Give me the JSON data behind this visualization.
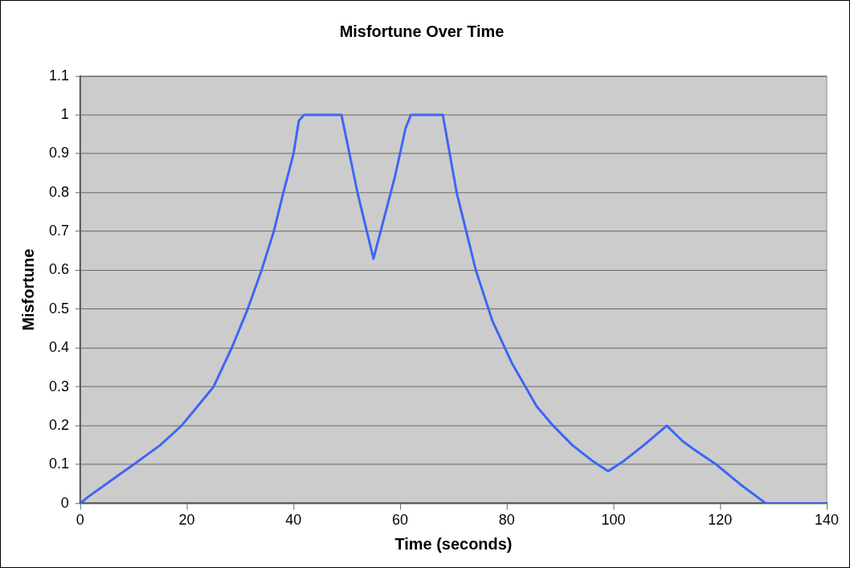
{
  "chart_data": {
    "type": "line",
    "title": "Misfortune Over Time",
    "xlabel": "Time (seconds)",
    "ylabel": "Misfortune",
    "series": [
      {
        "color": "#3d66f5",
        "x": [
          0,
          1.5,
          6.7,
          10,
          15,
          17,
          19,
          22,
          25,
          28.4,
          31.4,
          34,
          36.3,
          38.1,
          40,
          41,
          42,
          49,
          52,
          55,
          59,
          61,
          62,
          68,
          70.6,
          72.4,
          74.2,
          77.3,
          81,
          85.6,
          88.7,
          92.3,
          96,
          99,
          102,
          105.7,
          110,
          113,
          115,
          119.3,
          123.7,
          128.6,
          140
        ],
        "values": [
          0,
          0.017,
          0.068,
          0.1,
          0.15,
          0.175,
          0.2,
          0.25,
          0.3,
          0.4,
          0.5,
          0.6,
          0.7,
          0.8,
          0.9,
          0.985,
          1,
          1,
          0.8,
          0.63,
          0.84,
          0.965,
          1,
          1,
          0.8,
          0.7,
          0.6,
          0.47,
          0.36,
          0.25,
          0.2,
          0.15,
          0.11,
          0.083,
          0.11,
          0.15,
          0.2,
          0.16,
          0.14,
          0.1,
          0.05,
          0,
          0
        ]
      }
    ],
    "xlim": [
      0,
      140
    ],
    "xticks": [
      0,
      20,
      40,
      60,
      80,
      100,
      120,
      140
    ],
    "ylim": [
      0,
      1.1
    ],
    "yticks": [
      0,
      0.1,
      0.2,
      0.3,
      0.4,
      0.5,
      0.6,
      0.7,
      0.8,
      0.9,
      1,
      1.1
    ],
    "grid": "y",
    "marker": "none",
    "line_style": "solid",
    "legend": false
  }
}
